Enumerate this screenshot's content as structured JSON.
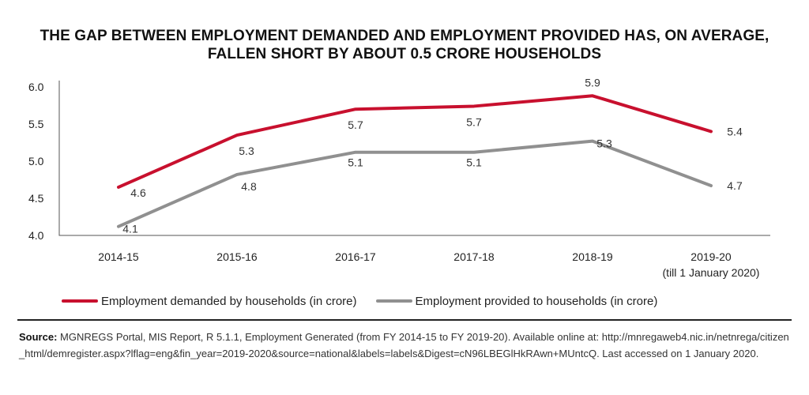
{
  "chart_data": {
    "type": "line",
    "title": "THE GAP BETWEEN EMPLOYMENT DEMANDED AND EMPLOYMENT PROVIDED HAS, ON AVERAGE, FALLEN SHORT BY ABOUT 0.5 CRORE HOUSEHOLDS",
    "categories": [
      "2014-15",
      "2015-16",
      "2016-17",
      "2017-18",
      "2018-19",
      "2019-20"
    ],
    "category_note": "(till 1 January 2020)",
    "ylim": [
      4.0,
      6.0
    ],
    "yticks": [
      "4.0",
      "4.5",
      "5.0",
      "5.5",
      "6.0"
    ],
    "grid": false,
    "legend_position": "bottom-left",
    "series": [
      {
        "name": "Employment demanded by households (in crore)",
        "color": "#c8102e",
        "values": [
          4.65,
          5.35,
          5.7,
          5.74,
          5.88,
          5.4
        ],
        "labels": [
          "4.6",
          "5.3",
          "5.7",
          "5.7",
          "5.9",
          "5.4"
        ]
      },
      {
        "name": "Employment provided to households (in crore)",
        "color": "#909090",
        "values": [
          4.12,
          4.82,
          5.12,
          5.12,
          5.27,
          4.67
        ],
        "labels": [
          "4.1",
          "4.8",
          "5.1",
          "5.1",
          "5.3",
          "4.7"
        ]
      }
    ]
  },
  "source": {
    "label": "Source:",
    "text": "MGNREGS Portal, MIS Report, R 5.1.1, Employment Generated (from FY 2014-15 to FY 2019-20). Available online at: http://mnregaweb4.nic.in/netnrega/citizen_html/demregister.aspx?lflag=eng&fin_year=2019-2020&source=national&labels=labels&Digest=cN96LBEGlHkRAwn+MUntcQ. Last accessed on 1 January 2020."
  }
}
